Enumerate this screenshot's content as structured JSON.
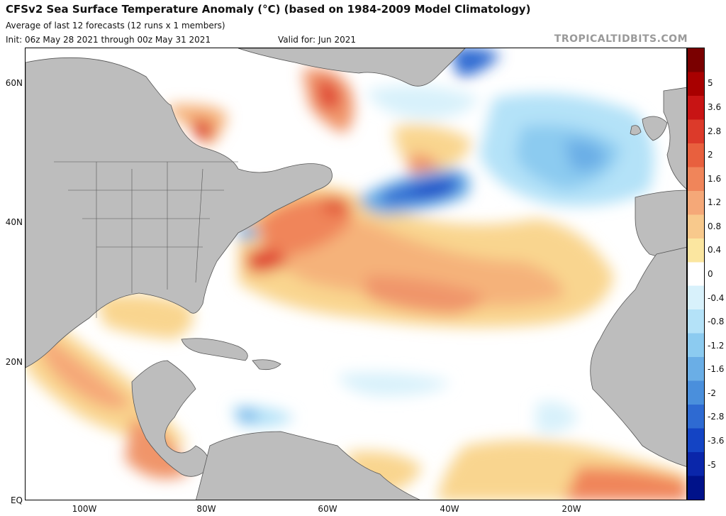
{
  "header": {
    "title": "CFSv2 Sea Surface Temperature Anomaly (°C) (based on 1984-2009 Model Climatology)",
    "subtitle": "Average of last 12 forecasts (12 runs x 1 members)",
    "init": "Init: 06z May 28 2021 through 00z May 31 2021",
    "valid": "Valid for: Jun 2021",
    "brand": "TROPICALTIDBITS.COM"
  },
  "map": {
    "region": "North Atlantic",
    "lat_labels": [
      "60N",
      "40N",
      "20N",
      "EQ"
    ],
    "lon_labels": [
      "100W",
      "80W",
      "60W",
      "40W",
      "20W"
    ]
  },
  "colorbar": {
    "labels": [
      "5",
      "3.6",
      "2.8",
      "2",
      "1.6",
      "1.2",
      "0.8",
      "0.4",
      "0",
      "-0.4",
      "-0.8",
      "-1.2",
      "-1.6",
      "-2",
      "-2.8",
      "-3.6",
      "-5"
    ],
    "colors": [
      "#7a0000",
      "#a80000",
      "#c81414",
      "#dc3a2a",
      "#e8603e",
      "#f0855a",
      "#f5a878",
      "#f8c98c",
      "#fbe6a0",
      "#ffffff",
      "#d8f1fb",
      "#b4e2f8",
      "#8ccbf0",
      "#6aaee6",
      "#4a8fdc",
      "#2e6ad2",
      "#1444c4",
      "#0a26aa",
      "#00128a"
    ],
    "land_color": "#bdbdbd"
  }
}
